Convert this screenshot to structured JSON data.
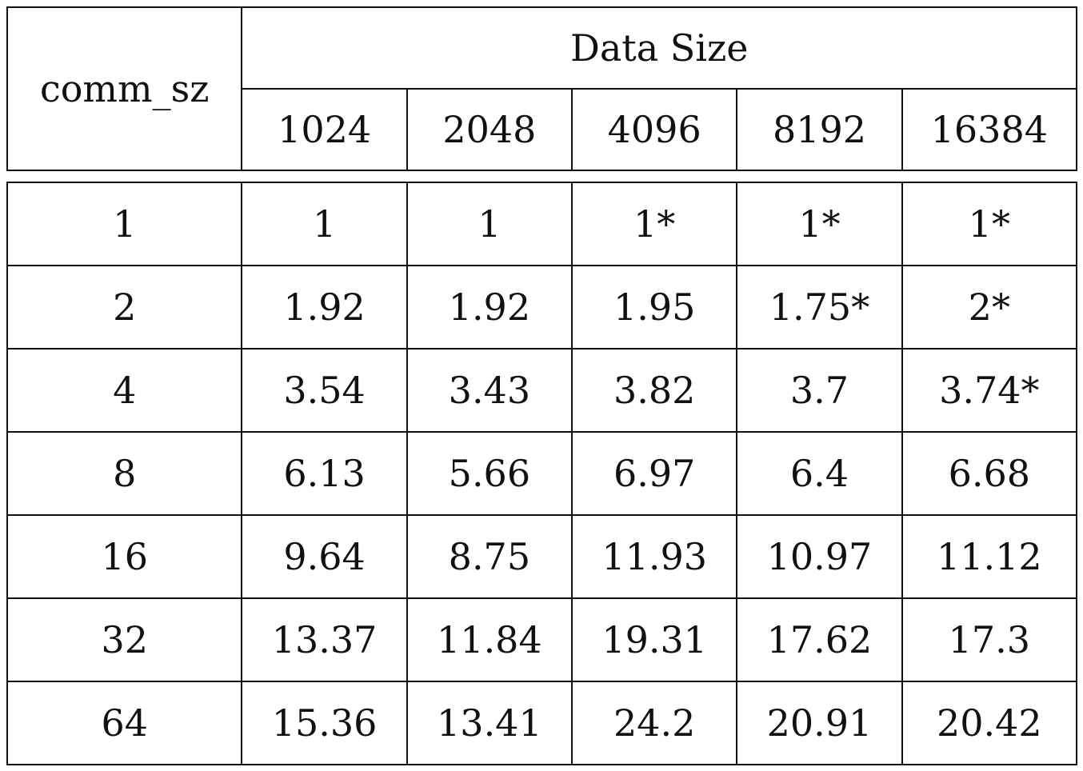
{
  "table": {
    "row_header_label": "comm_sz",
    "group_header_label": "Data Size",
    "columns": [
      "1024",
      "2048",
      "4096",
      "8192",
      "16384"
    ],
    "rows": [
      {
        "comm_sz": "1",
        "cells": [
          "1",
          "1",
          "1*",
          "1*",
          "1*"
        ]
      },
      {
        "comm_sz": "2",
        "cells": [
          "1.92",
          "1.92",
          "1.95",
          "1.75*",
          "2*"
        ]
      },
      {
        "comm_sz": "4",
        "cells": [
          "3.54",
          "3.43",
          "3.82",
          "3.7",
          "3.74*"
        ]
      },
      {
        "comm_sz": "8",
        "cells": [
          "6.13",
          "5.66",
          "6.97",
          "6.4",
          "6.68"
        ]
      },
      {
        "comm_sz": "16",
        "cells": [
          "9.64",
          "8.75",
          "11.93",
          "10.97",
          "11.12"
        ]
      },
      {
        "comm_sz": "32",
        "cells": [
          "13.37",
          "11.84",
          "19.31",
          "17.62",
          "17.3"
        ]
      },
      {
        "comm_sz": "64",
        "cells": [
          "15.36",
          "13.41",
          "24.2",
          "20.91",
          "20.42"
        ]
      }
    ]
  }
}
